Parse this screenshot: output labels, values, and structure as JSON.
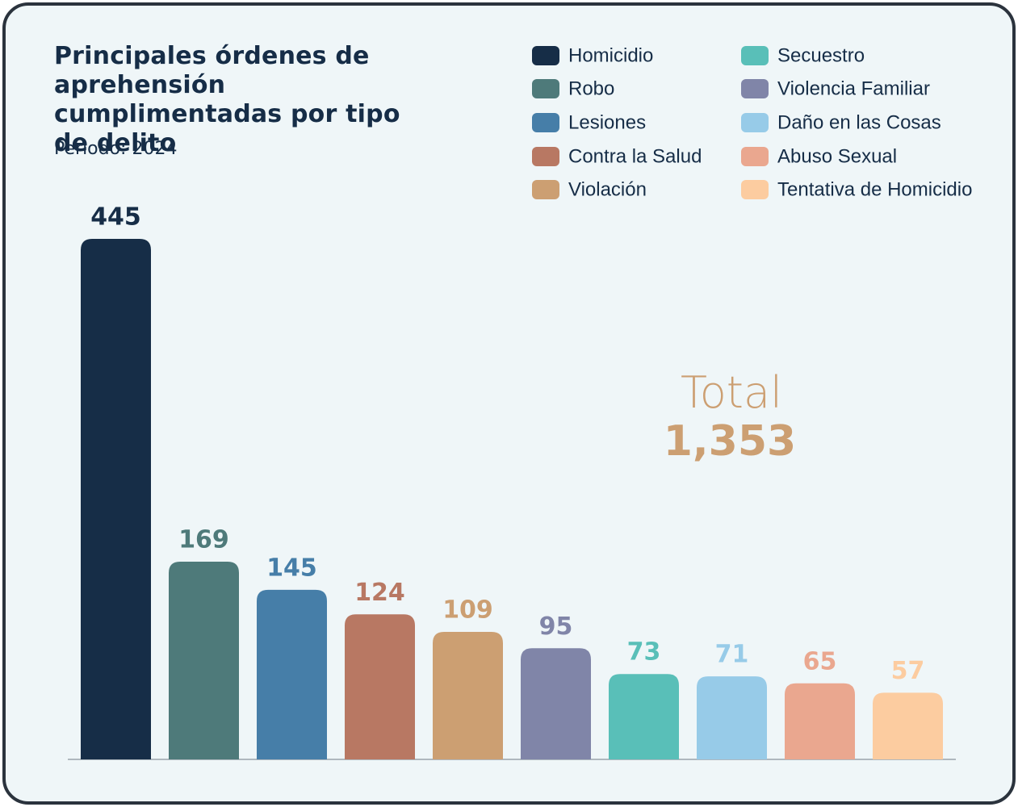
{
  "chart_data": {
    "type": "bar",
    "title": "Principales órdenes de aprehensión cumplimentadas por tipo de delito",
    "subtitle": "Periodo: 2024",
    "categories": [
      "Homicidio",
      "Robo",
      "Lesiones",
      "Contra la Salud",
      "Violación",
      "Violencia Familiar",
      "Secuestro",
      "Daño en las Cosas",
      "Abuso Sexual",
      "Tentativa de Homicidio"
    ],
    "values": [
      445,
      169,
      145,
      124,
      109,
      95,
      73,
      71,
      65,
      57
    ],
    "colors": [
      "#162d47",
      "#4e7a7a",
      "#467ea8",
      "#b87863",
      "#cc9f72",
      "#8085a8",
      "#59bfb8",
      "#97cbe8",
      "#eaa78f",
      "#fccca0"
    ],
    "annotations": [
      {
        "text": "Total"
      },
      {
        "text": "1,353"
      }
    ]
  }
}
